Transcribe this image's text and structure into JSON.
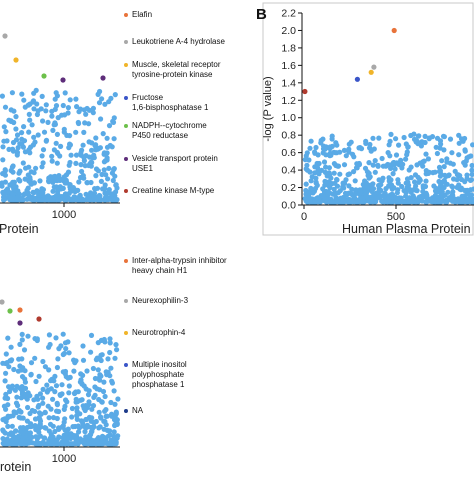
{
  "colors": {
    "scatter": "#5aaae6",
    "axis": "#111111"
  },
  "chart_data": [
    {
      "type": "scatter",
      "panel": "top-left (cropped)",
      "xlabel": "Protein",
      "x_ticks": [
        1000
      ],
      "series": [
        {
          "name": "Elafin",
          "color": "#e8733a"
        },
        {
          "name": "Leukotriene A-4 hydrolase",
          "color": "#a8a8a8"
        },
        {
          "name": "Muscle, skeletal receptor\ntyrosine-protein kinase",
          "color": "#f0b429"
        },
        {
          "name": "Fructose\n1,6-bisphosphatase 1",
          "color": "#3a55c8"
        },
        {
          "name": "NADPH--cytochrome\nP450 reductase",
          "color": "#6cc04a"
        },
        {
          "name": "Vesicle transport protein\nUSE1",
          "color": "#5e2d7a"
        },
        {
          "name": "Creatine kinase M-type",
          "color": "#b03a2e"
        }
      ]
    },
    {
      "type": "scatter",
      "panel_label": "B",
      "xlabel": "Human Plasma Protein",
      "ylabel": "-log (P value)",
      "ylim": [
        0,
        2.2
      ],
      "y_ticks": [
        0,
        0.2,
        0.4,
        0.6,
        0.8,
        1.0,
        1.2,
        1.4,
        1.6,
        1.8,
        2.0,
        2.2
      ],
      "x_ticks": [
        0,
        500
      ],
      "highlighted_points": [
        {
          "x": 490,
          "y": 2.0,
          "color": "#e8733a"
        },
        {
          "x": 380,
          "y": 1.58,
          "color": "#a8a8a8"
        },
        {
          "x": 365,
          "y": 1.52,
          "color": "#f0b429"
        },
        {
          "x": 290,
          "y": 1.44,
          "color": "#3a55c8"
        },
        {
          "x": 5,
          "y": 1.3,
          "color": "#b03a2e"
        }
      ]
    },
    {
      "type": "scatter",
      "panel": "bottom-left (cropped)",
      "xlabel": "rotein",
      "x_ticks": [
        1000
      ],
      "series": [
        {
          "name": "Inter-alpha-trypsin inhibitor\nheavy chain H1",
          "color": "#e8733a"
        },
        {
          "name": "Neurexophilin-3",
          "color": "#a8a8a8"
        },
        {
          "name": "Neurotrophin-4",
          "color": "#f0b429"
        },
        {
          "name": "Multiple inositol\npolyphosphate\nphosphatase 1",
          "color": "#3a55c8"
        },
        {
          "name": "NA",
          "color": "#1d3b8a"
        }
      ]
    }
  ]
}
